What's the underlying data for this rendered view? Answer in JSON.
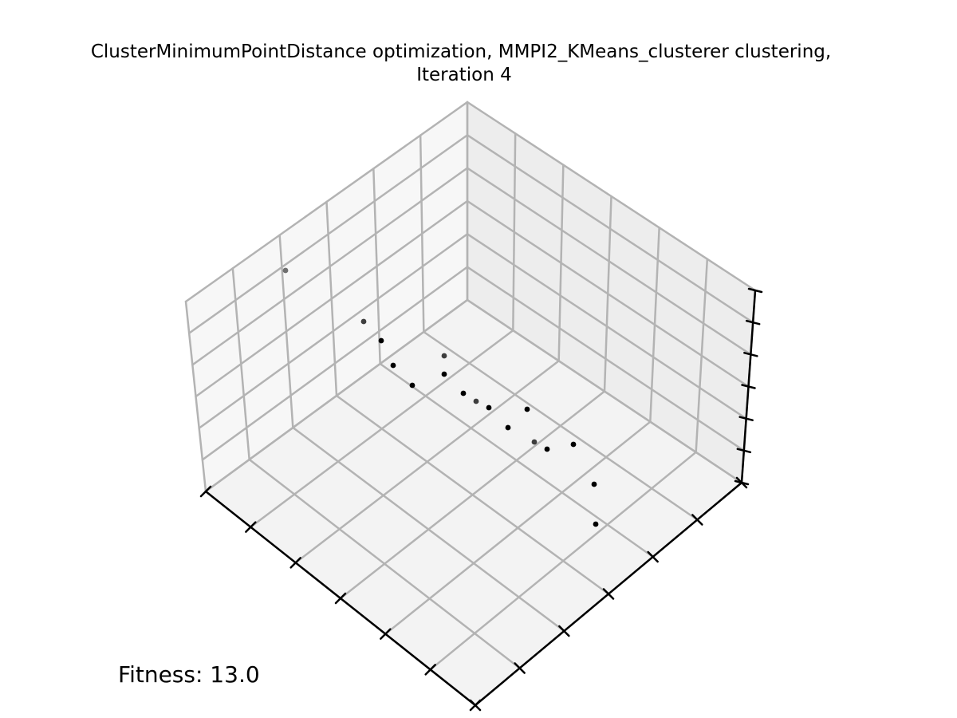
{
  "chart_data": {
    "type": "scatter",
    "projection": "3d",
    "title_lines": [
      "ClusterMinimumPointDistance optimization, MMPI2_KMeans_clusterer clustering,",
      "Iteration 4"
    ],
    "annotation": "Fitness: 13.0",
    "grid": true,
    "axis_tick_labels": "none",
    "colors": {
      "pane_left": "#f7f7f7",
      "pane_right": "#ededed",
      "pane_floor": "#f3f3f3",
      "grid": "#b3b3b3",
      "axis": "#000000",
      "points": "#000000"
    },
    "series": [
      {
        "marker": "dot",
        "points_screen_estimate": [
          {
            "u": 358,
            "v": 339,
            "depth": "far"
          },
          {
            "u": 456,
            "v": 403,
            "depth": "mid"
          },
          {
            "u": 478,
            "v": 427,
            "depth": "near"
          },
          {
            "u": 493,
            "v": 458,
            "depth": "near"
          },
          {
            "u": 517,
            "v": 483,
            "depth": "near"
          },
          {
            "u": 557,
            "v": 446,
            "depth": "mid"
          },
          {
            "u": 557,
            "v": 469,
            "depth": "near"
          },
          {
            "u": 581,
            "v": 493,
            "depth": "near"
          },
          {
            "u": 597,
            "v": 503,
            "depth": "mid"
          },
          {
            "u": 613,
            "v": 511,
            "depth": "near"
          },
          {
            "u": 637,
            "v": 536,
            "depth": "near"
          },
          {
            "u": 661,
            "v": 513,
            "depth": "near"
          },
          {
            "u": 670,
            "v": 554,
            "depth": "mid"
          },
          {
            "u": 686,
            "v": 563,
            "depth": "near"
          },
          {
            "u": 719,
            "v": 557,
            "depth": "near"
          },
          {
            "u": 745,
            "v": 607,
            "depth": "near"
          },
          {
            "u": 747,
            "v": 657,
            "depth": "near"
          }
        ]
      }
    ]
  }
}
